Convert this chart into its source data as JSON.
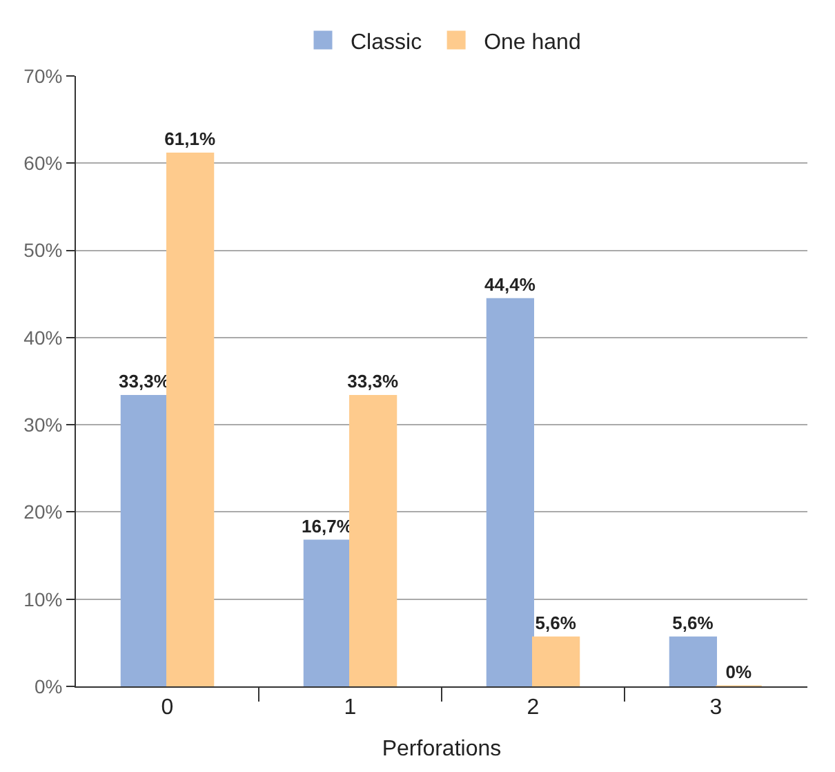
{
  "chart_data": {
    "type": "bar",
    "xlabel": "Perforations",
    "categories": [
      "0",
      "1",
      "2",
      "3"
    ],
    "series": [
      {
        "name": "Classic",
        "color": "#95b0dc",
        "values": [
          33.3,
          16.7,
          44.4,
          5.6
        ],
        "value_labels": [
          "33,3%",
          "16,7%",
          "44,4%",
          "5,6%"
        ]
      },
      {
        "name": "One hand",
        "color": "#fecb8d",
        "values": [
          61.1,
          33.3,
          5.6,
          0
        ],
        "value_labels": [
          "61,1%",
          "33,3%",
          "5,6%",
          "0%"
        ]
      }
    ],
    "ylim": [
      0,
      70
    ],
    "yticks": [
      {
        "value": 0,
        "label": "0%"
      },
      {
        "value": 10,
        "label": "10%"
      },
      {
        "value": 20,
        "label": "20%"
      },
      {
        "value": 30,
        "label": "30%"
      },
      {
        "value": 40,
        "label": "40%"
      },
      {
        "value": 50,
        "label": "50%"
      },
      {
        "value": 60,
        "label": "60%"
      },
      {
        "value": 70,
        "label": "70%"
      }
    ],
    "grid": "y",
    "legend": "top"
  }
}
